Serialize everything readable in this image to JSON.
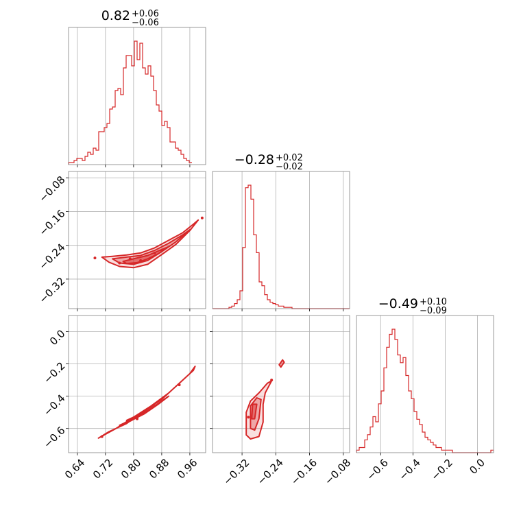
{
  "colors": {
    "series": "#d62728",
    "grid": "#b0b0b0",
    "frame": "#808080"
  },
  "chart_data": {
    "type": "corner",
    "parameters": [
      {
        "title": {
          "main": "0.82",
          "upper": "+0.06",
          "lower": "−0.06"
        },
        "range": [
          0.615,
          1.005
        ],
        "ticks": [
          0.64,
          0.72,
          0.8,
          0.88,
          0.96
        ],
        "tick_labels": [
          "0.64",
          "0.72",
          "0.80",
          "0.88",
          "0.96"
        ],
        "hist": {
          "edges_start": 0.615,
          "bin_width": 0.0078,
          "counts": [
            1,
            1,
            2,
            3,
            3,
            2,
            4,
            6,
            5,
            8,
            7,
            16,
            16,
            18,
            20,
            27,
            28,
            36,
            37,
            34,
            47,
            53,
            53,
            48,
            60,
            51,
            59,
            47,
            44,
            48,
            43,
            36,
            29,
            26,
            19,
            21,
            18,
            11,
            11,
            8,
            7,
            5,
            3,
            2,
            1
          ]
        }
      },
      {
        "title": {
          "main": "−0.28",
          "upper": "+0.02",
          "lower": "−0.02"
        },
        "range": [
          -0.39,
          -0.065
        ],
        "ticks": [
          -0.32,
          -0.24,
          -0.16,
          -0.08
        ],
        "tick_labels": [
          "−0.32",
          "−0.24",
          "−0.16",
          "−0.08"
        ],
        "hist": {
          "edges_start": -0.39,
          "bin_width": 0.0065,
          "counts": [
            0,
            0,
            0,
            0,
            0,
            0,
            1,
            2,
            4,
            7,
            14,
            48,
            95,
            97,
            86,
            58,
            44,
            21,
            18,
            11,
            7,
            5,
            4,
            3,
            2,
            2,
            1,
            1,
            1,
            0,
            0,
            0,
            0,
            0,
            0,
            0,
            0,
            0,
            0,
            0,
            0,
            0,
            0,
            0,
            0,
            0,
            0,
            0,
            0,
            0
          ]
        }
      },
      {
        "title": {
          "main": "−0.49",
          "upper": "+0.10",
          "lower": "−0.09"
        },
        "range": [
          -0.75,
          0.1
        ],
        "ticks": [
          -0.6,
          -0.4,
          -0.2,
          0.0
        ],
        "tick_labels": [
          "−0.6",
          "−0.4",
          "−0.2",
          "0.0"
        ],
        "hist": {
          "edges_start": -0.75,
          "bin_width": 0.017,
          "counts": [
            1,
            2,
            2,
            5,
            7,
            10,
            14,
            12,
            19,
            24,
            33,
            41,
            46,
            48,
            44,
            38,
            35,
            37,
            30,
            24,
            21,
            16,
            13,
            11,
            8,
            6,
            5,
            4,
            3,
            2,
            2,
            1,
            1,
            1,
            1,
            0,
            0,
            0,
            0,
            0,
            0,
            0,
            0,
            0,
            0,
            0,
            0,
            0,
            0,
            1
          ]
        }
      }
    ],
    "pairs": [
      {
        "x_param": 0,
        "y_param": 1,
        "y_ticks": [
          -0.32,
          -0.24,
          -0.16,
          -0.08
        ],
        "y_tick_labels": [
          "−0.32",
          "−0.24",
          "−0.16",
          "−0.08"
        ],
        "contours": [
          [
            [
              0.71,
              -0.268
            ],
            [
              0.74,
              -0.266
            ],
            [
              0.78,
              -0.263
            ],
            [
              0.82,
              -0.258
            ],
            [
              0.86,
              -0.246
            ],
            [
              0.9,
              -0.228
            ],
            [
              0.94,
              -0.21
            ],
            [
              0.97,
              -0.19
            ],
            [
              0.984,
              -0.18
            ],
            [
              0.96,
              -0.205
            ],
            [
              0.92,
              -0.238
            ],
            [
              0.88,
              -0.262
            ],
            [
              0.84,
              -0.285
            ],
            [
              0.8,
              -0.293
            ],
            [
              0.76,
              -0.29
            ],
            [
              0.73,
              -0.28
            ],
            [
              0.71,
              -0.268
            ]
          ],
          [
            [
              0.74,
              -0.272
            ],
            [
              0.78,
              -0.268
            ],
            [
              0.82,
              -0.264
            ],
            [
              0.86,
              -0.252
            ],
            [
              0.9,
              -0.235
            ],
            [
              0.94,
              -0.215
            ],
            [
              0.96,
              -0.203
            ],
            [
              0.92,
              -0.232
            ],
            [
              0.88,
              -0.255
            ],
            [
              0.84,
              -0.276
            ],
            [
              0.8,
              -0.285
            ],
            [
              0.76,
              -0.282
            ],
            [
              0.74,
              -0.272
            ]
          ],
          [
            [
              0.77,
              -0.278
            ],
            [
              0.8,
              -0.272
            ],
            [
              0.84,
              -0.264
            ],
            [
              0.88,
              -0.25
            ],
            [
              0.9,
              -0.243
            ],
            [
              0.87,
              -0.26
            ],
            [
              0.84,
              -0.272
            ],
            [
              0.81,
              -0.281
            ],
            [
              0.78,
              -0.283
            ],
            [
              0.77,
              -0.278
            ]
          ]
        ],
        "points": [
          [
            0.69,
            -0.27
          ],
          [
            0.76,
            -0.282
          ],
          [
            0.79,
            -0.272
          ],
          [
            0.82,
            -0.276
          ],
          [
            0.86,
            -0.258
          ],
          [
            0.88,
            -0.252
          ],
          [
            0.995,
            -0.175
          ]
        ]
      },
      {
        "x_param": 0,
        "y_param": 2,
        "y_ticks": [
          -0.6,
          -0.4,
          -0.2,
          0.0
        ],
        "y_tick_labels": [
          "−0.6",
          "−0.4",
          "−0.2",
          "0.0"
        ],
        "contours": [
          [
            [
              0.7,
              -0.66
            ],
            [
              0.75,
              -0.6
            ],
            [
              0.8,
              -0.53
            ],
            [
              0.85,
              -0.46
            ],
            [
              0.9,
              -0.38
            ],
            [
              0.94,
              -0.3
            ],
            [
              0.97,
              -0.24
            ],
            [
              0.975,
              -0.215
            ],
            [
              0.96,
              -0.26
            ],
            [
              0.92,
              -0.34
            ],
            [
              0.88,
              -0.42
            ],
            [
              0.83,
              -0.49
            ],
            [
              0.78,
              -0.57
            ],
            [
              0.73,
              -0.62
            ],
            [
              0.7,
              -0.66
            ]
          ],
          [
            [
              0.76,
              -0.58
            ],
            [
              0.8,
              -0.54
            ],
            [
              0.84,
              -0.49
            ],
            [
              0.88,
              -0.43
            ],
            [
              0.9,
              -0.4
            ],
            [
              0.87,
              -0.45
            ],
            [
              0.83,
              -0.51
            ],
            [
              0.79,
              -0.555
            ],
            [
              0.76,
              -0.58
            ]
          ],
          [
            [
              0.78,
              -0.55
            ],
            [
              0.82,
              -0.51
            ],
            [
              0.86,
              -0.45
            ],
            [
              0.84,
              -0.48
            ],
            [
              0.8,
              -0.53
            ],
            [
              0.78,
              -0.55
            ]
          ]
        ],
        "points": [
          [
            0.71,
            -0.65
          ],
          [
            0.81,
            -0.54
          ],
          [
            0.93,
            -0.33
          ]
        ]
      },
      {
        "x_param": 1,
        "y_param": 2,
        "y_ticks": [
          -0.6,
          -0.4,
          -0.2,
          0.0
        ],
        "y_tick_labels": [
          "−0.6",
          "−0.4",
          "−0.2",
          "0.0"
        ],
        "contours": [
          [
            [
              -0.31,
              -0.64
            ],
            [
              -0.31,
              -0.5
            ],
            [
              -0.3,
              -0.43
            ],
            [
              -0.28,
              -0.38
            ],
            [
              -0.26,
              -0.32
            ],
            [
              -0.25,
              -0.305
            ],
            [
              -0.265,
              -0.38
            ],
            [
              -0.27,
              -0.45
            ],
            [
              -0.27,
              -0.56
            ],
            [
              -0.28,
              -0.65
            ],
            [
              -0.3,
              -0.665
            ],
            [
              -0.31,
              -0.64
            ]
          ],
          [
            [
              -0.3,
              -0.6
            ],
            [
              -0.3,
              -0.46
            ],
            [
              -0.285,
              -0.41
            ],
            [
              -0.275,
              -0.42
            ],
            [
              -0.28,
              -0.54
            ],
            [
              -0.29,
              -0.61
            ],
            [
              -0.3,
              -0.6
            ]
          ],
          [
            [
              -0.297,
              -0.54
            ],
            [
              -0.295,
              -0.45
            ],
            [
              -0.285,
              -0.45
            ],
            [
              -0.29,
              -0.54
            ],
            [
              -0.297,
              -0.54
            ]
          ],
          [
            [
              -0.228,
              -0.22
            ],
            [
              -0.22,
              -0.19
            ],
            [
              -0.224,
              -0.175
            ],
            [
              -0.232,
              -0.205
            ],
            [
              -0.228,
              -0.22
            ]
          ]
        ],
        "points": [
          [
            -0.305,
            -0.53
          ],
          [
            -0.25,
            -0.3
          ]
        ]
      }
    ]
  }
}
